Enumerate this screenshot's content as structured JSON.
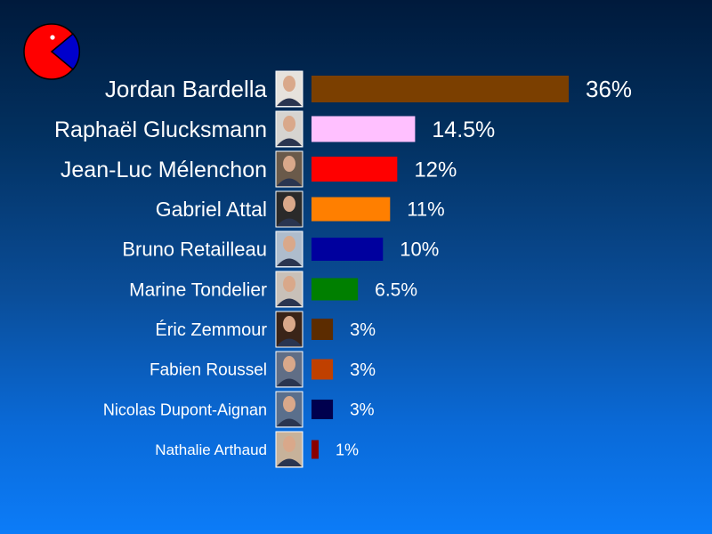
{
  "logo": {
    "icon": "pie-logo-icon",
    "colors": [
      "#ff0000",
      "#0000cc"
    ]
  },
  "chart_data": {
    "type": "bar",
    "orientation": "horizontal",
    "categories": [
      "Jordan Bardella",
      "Raphaël Glucksmann",
      "Jean-Luc Mélenchon",
      "Gabriel Attal",
      "Bruno Retailleau",
      "Marine Tondelier",
      "Éric Zemmour",
      "Fabien Roussel",
      "Nicolas Dupont-Aignan",
      "Nathalie Arthaud"
    ],
    "values": [
      36,
      14.5,
      12,
      11,
      10,
      6.5,
      3,
      3,
      3,
      1
    ],
    "value_labels": [
      "36%",
      "14.5%",
      "12%",
      "11%",
      "10%",
      "6.5%",
      "3%",
      "3%",
      "3%",
      "1%"
    ],
    "colors": [
      "#7b3f00",
      "#ffc0ff",
      "#ff0000",
      "#ff7f00",
      "#00009e",
      "#007f00",
      "#5c2c00",
      "#c04000",
      "#00004e",
      "#8a0000"
    ],
    "photo_colors": [
      "#e6e2dc",
      "#d6d4d0",
      "#6a5a4a",
      "#2a2a2a",
      "#aebccc",
      "#c8c0b8",
      "#3a2418",
      "#606e86",
      "#5a6f8c",
      "#c7b29a"
    ],
    "unit": "%",
    "grid": false,
    "legend": "none"
  }
}
